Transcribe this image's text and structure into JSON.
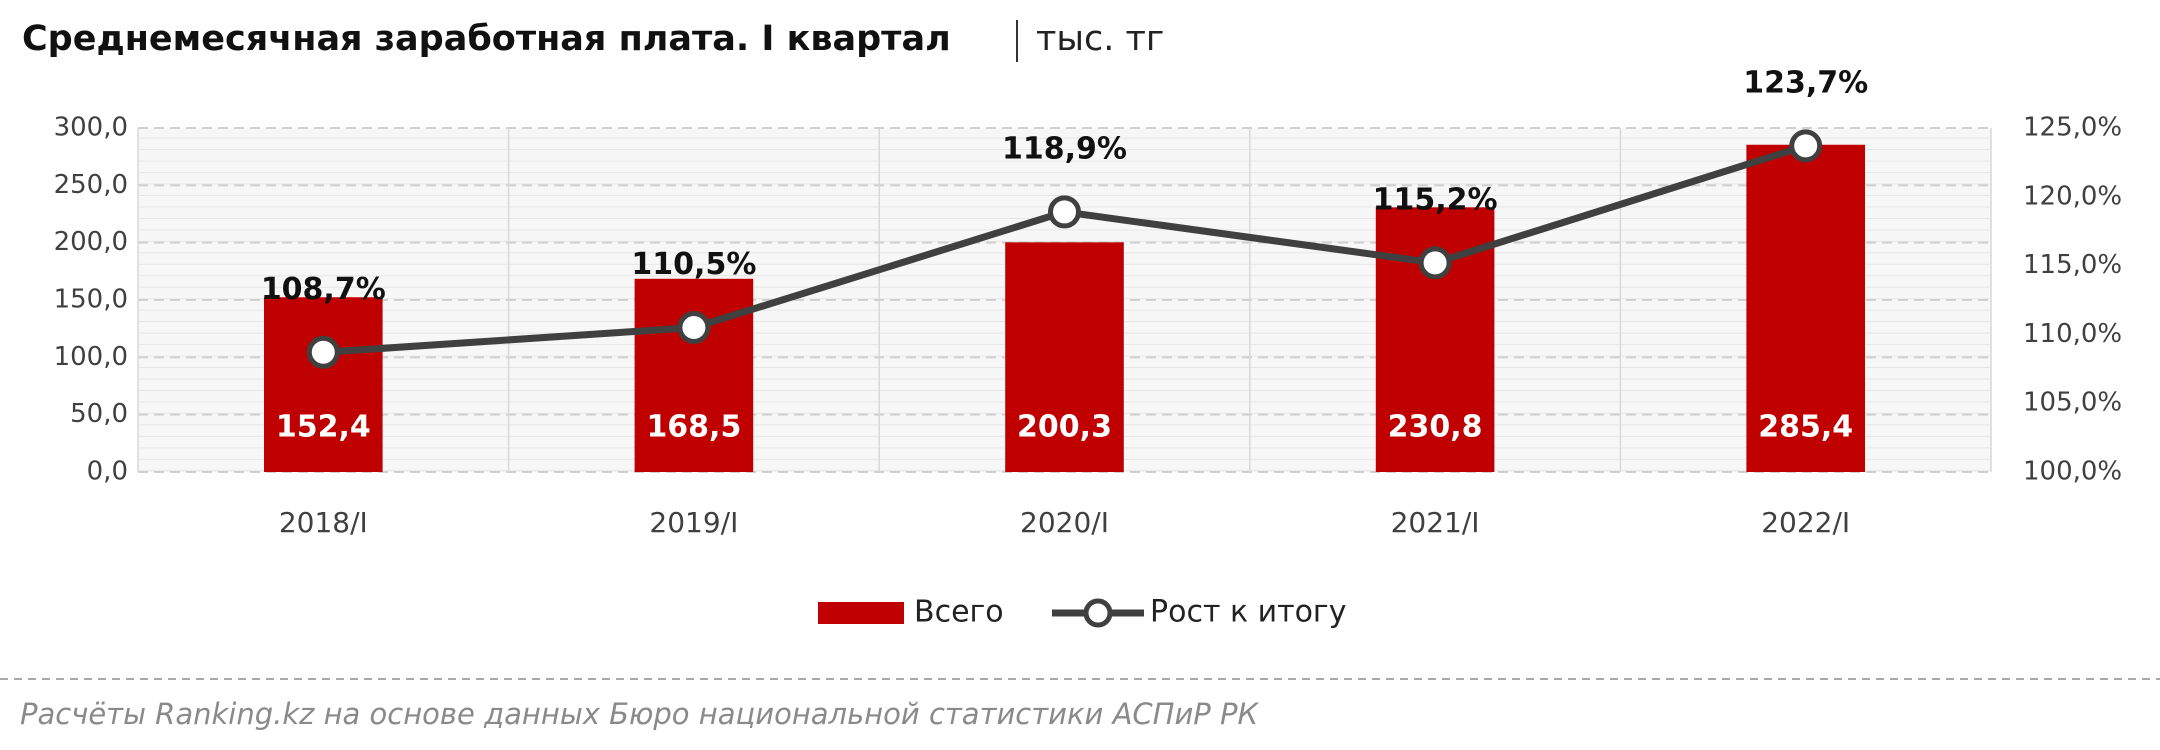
{
  "chart_data": {
    "type": "combo",
    "title": "Среднемесячная заработная плата. I квартал",
    "unit": "тыс. тг",
    "source": "Расчёты Ranking.kz на основе данных Бюро национальной статистики АСПиР РК",
    "categories": [
      "2018/I",
      "2019/I",
      "2020/I",
      "2021/I",
      "2022/I"
    ],
    "series": [
      {
        "name": "Всего",
        "type": "bar",
        "color": "#c00000",
        "values": [
          152.4,
          168.5,
          200.3,
          230.8,
          285.4
        ],
        "value_labels": [
          "152,4",
          "168,5",
          "200,3",
          "230,8",
          "285,4"
        ]
      },
      {
        "name": "Рост к итогу",
        "type": "line",
        "axis": "y2",
        "color": "#404040",
        "values": [
          108.7,
          110.5,
          118.9,
          115.2,
          123.7
        ],
        "value_labels": [
          "108,7%",
          "110,5%",
          "118,9%",
          "115,2%",
          "123,7%"
        ]
      }
    ],
    "ylim": [
      0,
      300
    ],
    "yticks": [
      {
        "value": 0,
        "label": "0,0"
      },
      {
        "value": 50,
        "label": "50,0"
      },
      {
        "value": 100,
        "label": "100,0"
      },
      {
        "value": 150,
        "label": "150,0"
      },
      {
        "value": 200,
        "label": "200,0"
      },
      {
        "value": 250,
        "label": "250,0"
      },
      {
        "value": 300,
        "label": "300,0"
      }
    ],
    "y2lim": [
      100,
      125
    ],
    "y2ticks": [
      {
        "value": 100,
        "label": "100,0%"
      },
      {
        "value": 105,
        "label": "105,0%"
      },
      {
        "value": 110,
        "label": "110,0%"
      },
      {
        "value": 115,
        "label": "115,0%"
      },
      {
        "value": 120,
        "label": "120,0%"
      },
      {
        "value": 125,
        "label": "125,0%"
      }
    ],
    "grid": true,
    "legend": "bottom"
  }
}
